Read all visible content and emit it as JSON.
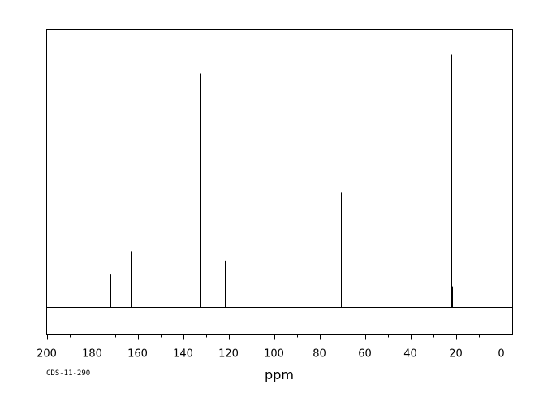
{
  "chart_data": {
    "type": "line",
    "title": "",
    "xlabel": "ppm",
    "ylabel": "",
    "xlim": [
      200,
      -5
    ],
    "x_reversed": true,
    "y_scale": "relative intensity (0-100)",
    "xticks": [
      200,
      180,
      160,
      140,
      120,
      100,
      80,
      60,
      40,
      20,
      0
    ],
    "grid": false,
    "legend": "none",
    "peaks": [
      {
        "x": 171.8,
        "y": 14
      },
      {
        "x": 162.9,
        "y": 24
      },
      {
        "x": 132.8,
        "y": 100
      },
      {
        "x": 121.5,
        "y": 20
      },
      {
        "x": 115.4,
        "y": 101
      },
      {
        "x": 70.5,
        "y": 49
      },
      {
        "x": 22.0,
        "y": 108
      },
      {
        "x": 21.6,
        "y": 9
      }
    ]
  },
  "footer": {
    "code": "CDS-11-290"
  }
}
